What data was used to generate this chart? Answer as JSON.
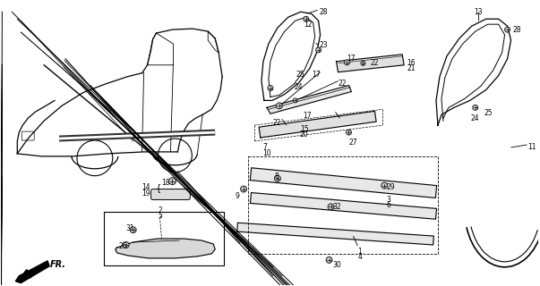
{
  "bg_color": "#ffffff",
  "fig_width": 6.03,
  "fig_height": 3.2,
  "dpi": 100,
  "lc": "#000000",
  "fs": 5.5
}
